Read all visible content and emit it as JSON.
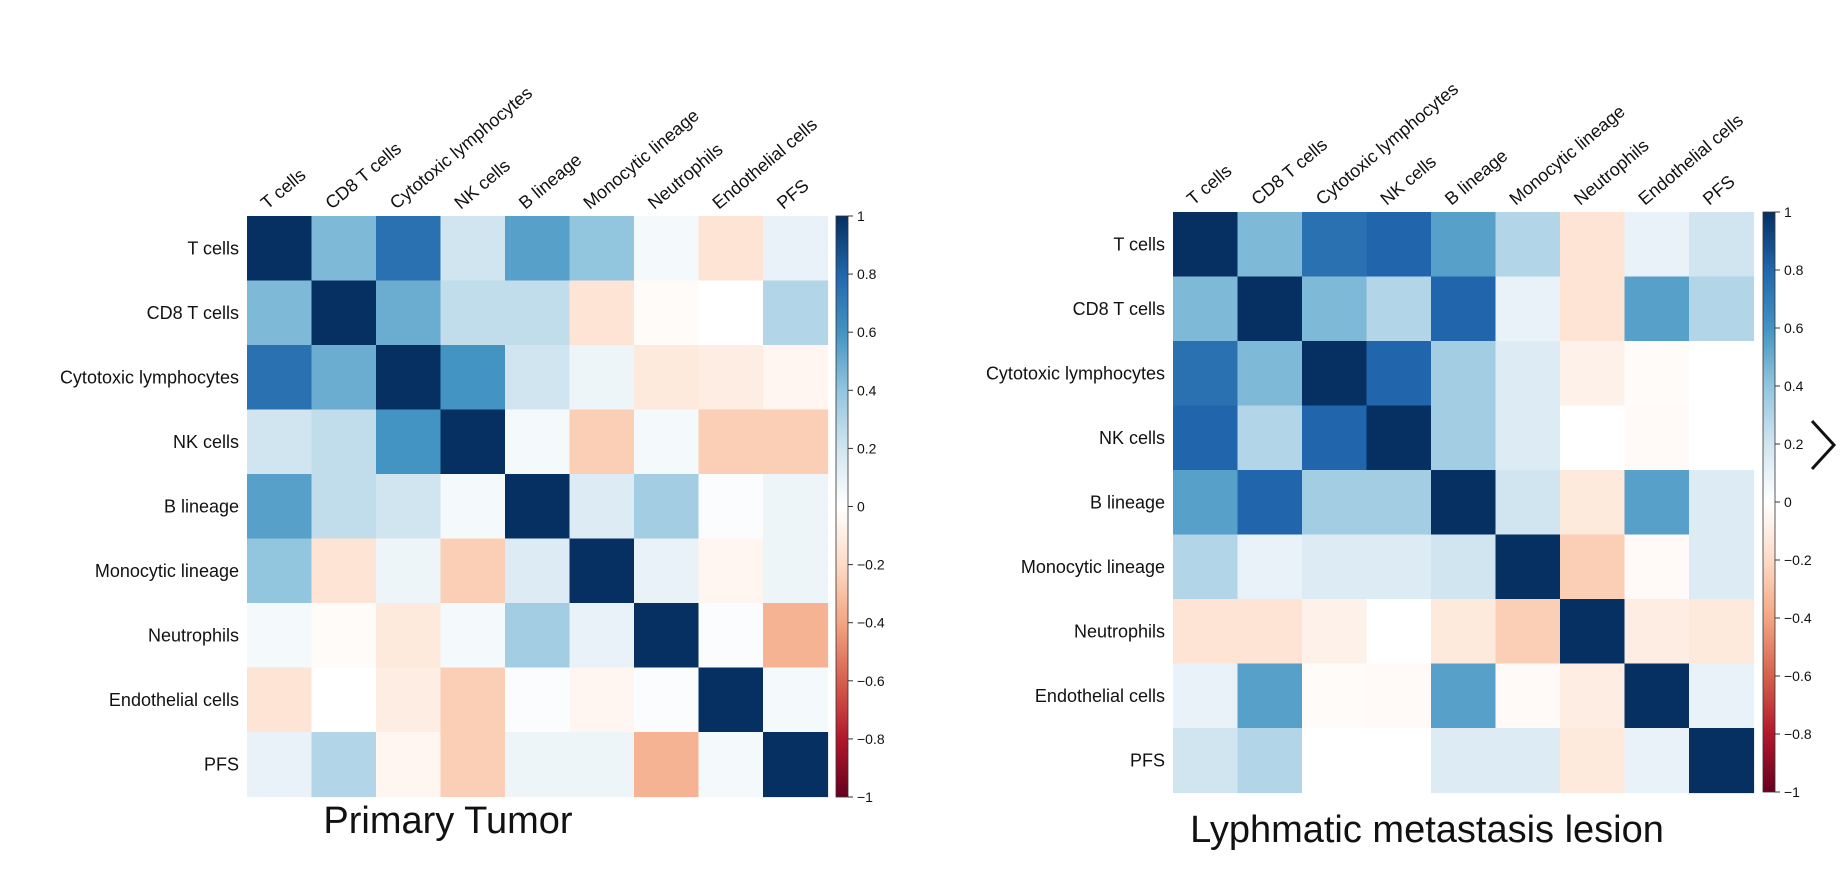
{
  "chart_data": [
    {
      "type": "heatmap",
      "title": "Primary Tumor",
      "row_labels": [
        "T cells",
        "CD8 T cells",
        "Cytotoxic lymphocytes",
        "NK cells",
        "B lineage",
        "Monocytic lineage",
        "Neutrophils",
        "Endothelial cells",
        "PFS"
      ],
      "col_labels": [
        "T cells",
        "CD8 T cells",
        "Cytotoxic lymphocytes",
        "NK cells",
        "B lineage",
        "Monocytic lineage",
        "Neutrophils",
        "Endothelial cells",
        "PFS"
      ],
      "values": [
        [
          1.0,
          0.45,
          0.75,
          0.2,
          0.55,
          0.4,
          0.05,
          -0.15,
          0.1
        ],
        [
          0.45,
          1.0,
          0.5,
          0.25,
          0.25,
          -0.15,
          -0.02,
          0.0,
          0.3
        ],
        [
          0.75,
          0.5,
          1.0,
          0.6,
          0.2,
          0.08,
          -0.12,
          -0.1,
          -0.05
        ],
        [
          0.2,
          0.25,
          0.6,
          1.0,
          0.05,
          -0.25,
          0.05,
          -0.25,
          -0.25
        ],
        [
          0.55,
          0.25,
          0.2,
          0.05,
          1.0,
          0.15,
          0.35,
          0.02,
          0.08
        ],
        [
          0.4,
          -0.15,
          0.08,
          -0.25,
          0.15,
          1.0,
          0.1,
          -0.05,
          0.08
        ],
        [
          0.05,
          -0.02,
          -0.12,
          0.05,
          0.35,
          0.1,
          1.0,
          0.02,
          -0.35
        ],
        [
          -0.15,
          0.0,
          -0.1,
          -0.25,
          0.02,
          -0.05,
          0.02,
          1.0,
          0.05
        ],
        [
          0.1,
          0.3,
          -0.05,
          -0.25,
          0.08,
          0.08,
          -0.35,
          0.05,
          1.0
        ]
      ],
      "colorbar": {
        "range": [
          -1,
          1
        ],
        "ticks": [
          1,
          0.8,
          0.6,
          0.4,
          0.2,
          0,
          -0.2,
          -0.4,
          -0.6,
          -0.8,
          -1
        ],
        "tick_labels": [
          "1",
          "0.8",
          "0.6",
          "0.4",
          "0.2",
          "0",
          "−0.2",
          "−0.4",
          "−0.6",
          "−0.8",
          "−1"
        ]
      },
      "grid": false
    },
    {
      "type": "heatmap",
      "title": "Lyphmatic metastasis lesion",
      "row_labels": [
        "T cells",
        "CD8 T cells",
        "Cytotoxic lymphocytes",
        "NK cells",
        "B lineage",
        "Monocytic lineage",
        "Neutrophils",
        "Endothelial cells",
        "PFS"
      ],
      "col_labels": [
        "T cells",
        "CD8 T cells",
        "Cytotoxic lymphocytes",
        "NK cells",
        "B lineage",
        "Monocytic lineage",
        "Neutrophils",
        "Endothelial cells",
        "PFS"
      ],
      "values": [
        [
          1.0,
          0.45,
          0.75,
          0.8,
          0.55,
          0.3,
          -0.15,
          0.1,
          0.2
        ],
        [
          0.45,
          1.0,
          0.45,
          0.3,
          0.8,
          0.1,
          -0.15,
          0.55,
          0.3
        ],
        [
          0.75,
          0.45,
          1.0,
          0.8,
          0.35,
          0.15,
          -0.08,
          -0.02,
          0.0
        ],
        [
          0.8,
          0.3,
          0.8,
          1.0,
          0.35,
          0.15,
          0.0,
          -0.03,
          0.0
        ],
        [
          0.55,
          0.8,
          0.35,
          0.35,
          1.0,
          0.2,
          -0.12,
          0.55,
          0.15
        ],
        [
          0.3,
          0.1,
          0.15,
          0.15,
          0.2,
          1.0,
          -0.25,
          -0.03,
          0.15
        ],
        [
          -0.15,
          -0.15,
          -0.08,
          0.0,
          -0.12,
          -0.25,
          1.0,
          -0.1,
          -0.12
        ],
        [
          0.1,
          0.55,
          -0.02,
          -0.03,
          0.55,
          -0.03,
          -0.1,
          1.0,
          0.1
        ],
        [
          0.2,
          0.3,
          0.0,
          0.0,
          0.15,
          0.15,
          -0.12,
          0.1,
          1.0
        ]
      ],
      "colorbar": {
        "range": [
          -1,
          1
        ],
        "ticks": [
          1,
          0.8,
          0.6,
          0.4,
          0.2,
          0,
          -0.2,
          -0.4,
          -0.6,
          -0.8,
          -1
        ],
        "tick_labels": [
          "1",
          "0.8",
          "0.6",
          "0.4",
          "0.2",
          "0",
          "−0.2",
          "−0.4",
          "−0.6",
          "−0.8",
          "−1"
        ]
      },
      "grid": false
    }
  ],
  "colors": {
    "scale": [
      "#67001f",
      "#b2182b",
      "#d6604d",
      "#f4a582",
      "#fddbc7",
      "#ffffff",
      "#d1e5f0",
      "#92c5de",
      "#4393c3",
      "#2166ac",
      "#053061"
    ]
  },
  "nav": {
    "icon": "chevron-right-icon"
  }
}
